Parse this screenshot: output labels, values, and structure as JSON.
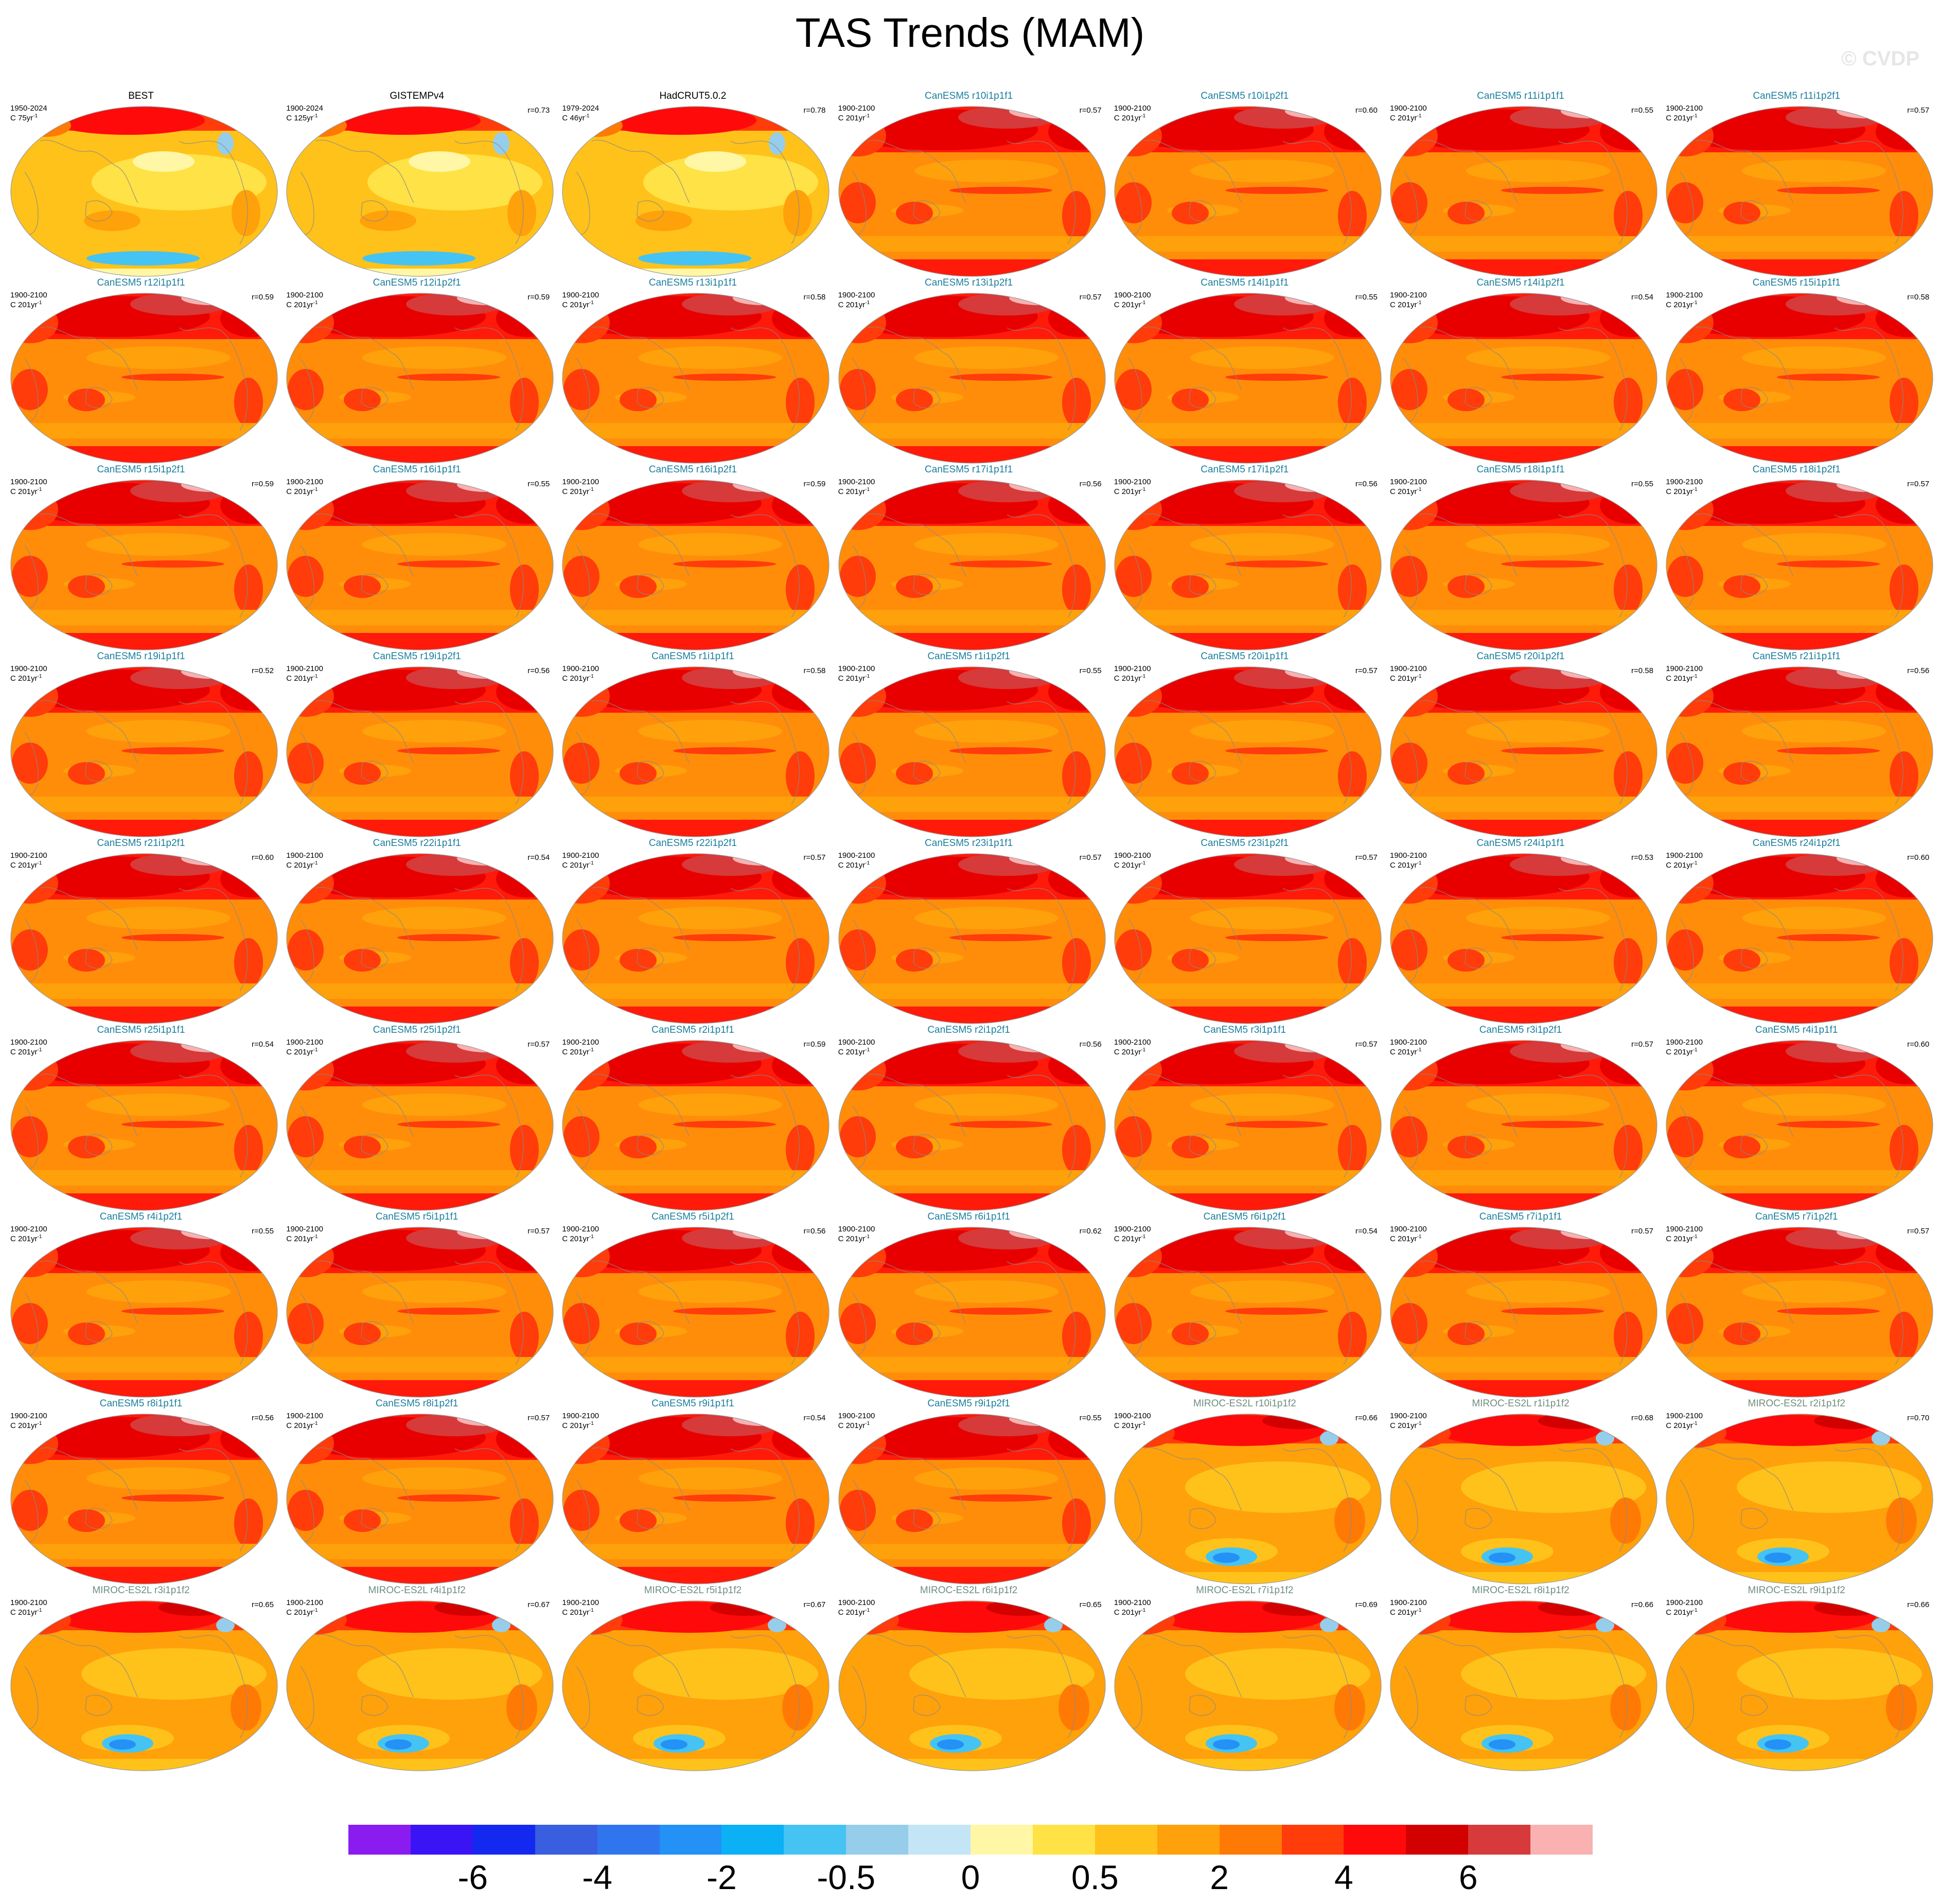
{
  "title": "TAS Trends (MAM)",
  "watermark": "© CVDP",
  "colors": {
    "obs_title": "#000000",
    "canesm_title": "#1a7f9e",
    "miroc_title": "#6f8f7f"
  },
  "colorbar": {
    "colors": [
      "#8a1cf0",
      "#3a14f5",
      "#1429f0",
      "#3a5ee0",
      "#2f76ee",
      "#2391f5",
      "#0bb0f5",
      "#45c3f3",
      "#96cdea",
      "#c3e5f5",
      "#fff7a6",
      "#ffe245",
      "#ffc21a",
      "#ffa10a",
      "#ff7a05",
      "#ff3c0a",
      "#ff0a0a",
      "#d30000",
      "#d63a3a",
      "#f9b1b1"
    ],
    "tick_labels": [
      "-6",
      "-4",
      "-2",
      "-0.5",
      "0",
      "0.5",
      "2",
      "4",
      "6"
    ]
  },
  "panels": [
    {
      "title": "BEST",
      "period": "1950-2024",
      "unit": "C 75yr",
      "corr": "",
      "style": "obs"
    },
    {
      "title": "GISTEMPv4",
      "period": "1900-2024",
      "unit": "C 125yr",
      "corr": "r=0.73",
      "style": "obs"
    },
    {
      "title": "HadCRUT5.0.2",
      "period": "1979-2024",
      "unit": "C 46yr",
      "corr": "r=0.78",
      "style": "obs"
    },
    {
      "title": "CanESM5 r10i1p1f1",
      "period": "1900-2100",
      "unit": "C 201yr",
      "corr": "r=0.57",
      "style": "canesm"
    },
    {
      "title": "CanESM5 r10i1p2f1",
      "period": "1900-2100",
      "unit": "C 201yr",
      "corr": "r=0.60",
      "style": "canesm"
    },
    {
      "title": "CanESM5 r11i1p1f1",
      "period": "1900-2100",
      "unit": "C 201yr",
      "corr": "r=0.55",
      "style": "canesm"
    },
    {
      "title": "CanESM5 r11i1p2f1",
      "period": "1900-2100",
      "unit": "C 201yr",
      "corr": "r=0.57",
      "style": "canesm"
    },
    {
      "title": "CanESM5 r12i1p1f1",
      "period": "1900-2100",
      "unit": "C 201yr",
      "corr": "r=0.59",
      "style": "canesm"
    },
    {
      "title": "CanESM5 r12i1p2f1",
      "period": "1900-2100",
      "unit": "C 201yr",
      "corr": "r=0.59",
      "style": "canesm"
    },
    {
      "title": "CanESM5 r13i1p1f1",
      "period": "1900-2100",
      "unit": "C 201yr",
      "corr": "r=0.58",
      "style": "canesm"
    },
    {
      "title": "CanESM5 r13i1p2f1",
      "period": "1900-2100",
      "unit": "C 201yr",
      "corr": "r=0.57",
      "style": "canesm"
    },
    {
      "title": "CanESM5 r14i1p1f1",
      "period": "1900-2100",
      "unit": "C 201yr",
      "corr": "r=0.55",
      "style": "canesm"
    },
    {
      "title": "CanESM5 r14i1p2f1",
      "period": "1900-2100",
      "unit": "C 201yr",
      "corr": "r=0.54",
      "style": "canesm"
    },
    {
      "title": "CanESM5 r15i1p1f1",
      "period": "1900-2100",
      "unit": "C 201yr",
      "corr": "r=0.58",
      "style": "canesm"
    },
    {
      "title": "CanESM5 r15i1p2f1",
      "period": "1900-2100",
      "unit": "C 201yr",
      "corr": "r=0.59",
      "style": "canesm"
    },
    {
      "title": "CanESM5 r16i1p1f1",
      "period": "1900-2100",
      "unit": "C 201yr",
      "corr": "r=0.55",
      "style": "canesm"
    },
    {
      "title": "CanESM5 r16i1p2f1",
      "period": "1900-2100",
      "unit": "C 201yr",
      "corr": "r=0.59",
      "style": "canesm"
    },
    {
      "title": "CanESM5 r17i1p1f1",
      "period": "1900-2100",
      "unit": "C 201yr",
      "corr": "r=0.56",
      "style": "canesm"
    },
    {
      "title": "CanESM5 r17i1p2f1",
      "period": "1900-2100",
      "unit": "C 201yr",
      "corr": "r=0.56",
      "style": "canesm"
    },
    {
      "title": "CanESM5 r18i1p1f1",
      "period": "1900-2100",
      "unit": "C 201yr",
      "corr": "r=0.55",
      "style": "canesm"
    },
    {
      "title": "CanESM5 r18i1p2f1",
      "period": "1900-2100",
      "unit": "C 201yr",
      "corr": "r=0.57",
      "style": "canesm"
    },
    {
      "title": "CanESM5 r19i1p1f1",
      "period": "1900-2100",
      "unit": "C 201yr",
      "corr": "r=0.52",
      "style": "canesm"
    },
    {
      "title": "CanESM5 r19i1p2f1",
      "period": "1900-2100",
      "unit": "C 201yr",
      "corr": "r=0.56",
      "style": "canesm"
    },
    {
      "title": "CanESM5 r1i1p1f1",
      "period": "1900-2100",
      "unit": "C 201yr",
      "corr": "r=0.58",
      "style": "canesm"
    },
    {
      "title": "CanESM5 r1i1p2f1",
      "period": "1900-2100",
      "unit": "C 201yr",
      "corr": "r=0.55",
      "style": "canesm"
    },
    {
      "title": "CanESM5 r20i1p1f1",
      "period": "1900-2100",
      "unit": "C 201yr",
      "corr": "r=0.57",
      "style": "canesm"
    },
    {
      "title": "CanESM5 r20i1p2f1",
      "period": "1900-2100",
      "unit": "C 201yr",
      "corr": "r=0.58",
      "style": "canesm"
    },
    {
      "title": "CanESM5 r21i1p1f1",
      "period": "1900-2100",
      "unit": "C 201yr",
      "corr": "r=0.56",
      "style": "canesm"
    },
    {
      "title": "CanESM5 r21i1p2f1",
      "period": "1900-2100",
      "unit": "C 201yr",
      "corr": "r=0.60",
      "style": "canesm"
    },
    {
      "title": "CanESM5 r22i1p1f1",
      "period": "1900-2100",
      "unit": "C 201yr",
      "corr": "r=0.54",
      "style": "canesm"
    },
    {
      "title": "CanESM5 r22i1p2f1",
      "period": "1900-2100",
      "unit": "C 201yr",
      "corr": "r=0.57",
      "style": "canesm"
    },
    {
      "title": "CanESM5 r23i1p1f1",
      "period": "1900-2100",
      "unit": "C 201yr",
      "corr": "r=0.57",
      "style": "canesm"
    },
    {
      "title": "CanESM5 r23i1p2f1",
      "period": "1900-2100",
      "unit": "C 201yr",
      "corr": "r=0.57",
      "style": "canesm"
    },
    {
      "title": "CanESM5 r24i1p1f1",
      "period": "1900-2100",
      "unit": "C 201yr",
      "corr": "r=0.53",
      "style": "canesm"
    },
    {
      "title": "CanESM5 r24i1p2f1",
      "period": "1900-2100",
      "unit": "C 201yr",
      "corr": "r=0.60",
      "style": "canesm"
    },
    {
      "title": "CanESM5 r25i1p1f1",
      "period": "1900-2100",
      "unit": "C 201yr",
      "corr": "r=0.54",
      "style": "canesm"
    },
    {
      "title": "CanESM5 r25i1p2f1",
      "period": "1900-2100",
      "unit": "C 201yr",
      "corr": "r=0.57",
      "style": "canesm"
    },
    {
      "title": "CanESM5 r2i1p1f1",
      "period": "1900-2100",
      "unit": "C 201yr",
      "corr": "r=0.59",
      "style": "canesm"
    },
    {
      "title": "CanESM5 r2i1p2f1",
      "period": "1900-2100",
      "unit": "C 201yr",
      "corr": "r=0.56",
      "style": "canesm"
    },
    {
      "title": "CanESM5 r3i1p1f1",
      "period": "1900-2100",
      "unit": "C 201yr",
      "corr": "r=0.57",
      "style": "canesm"
    },
    {
      "title": "CanESM5 r3i1p2f1",
      "period": "1900-2100",
      "unit": "C 201yr",
      "corr": "r=0.57",
      "style": "canesm"
    },
    {
      "title": "CanESM5 r4i1p1f1",
      "period": "1900-2100",
      "unit": "C 201yr",
      "corr": "r=0.60",
      "style": "canesm"
    },
    {
      "title": "CanESM5 r4i1p2f1",
      "period": "1900-2100",
      "unit": "C 201yr",
      "corr": "r=0.55",
      "style": "canesm"
    },
    {
      "title": "CanESM5 r5i1p1f1",
      "period": "1900-2100",
      "unit": "C 201yr",
      "corr": "r=0.57",
      "style": "canesm"
    },
    {
      "title": "CanESM5 r5i1p2f1",
      "period": "1900-2100",
      "unit": "C 201yr",
      "corr": "r=0.56",
      "style": "canesm"
    },
    {
      "title": "CanESM5 r6i1p1f1",
      "period": "1900-2100",
      "unit": "C 201yr",
      "corr": "r=0.62",
      "style": "canesm"
    },
    {
      "title": "CanESM5 r6i1p2f1",
      "period": "1900-2100",
      "unit": "C 201yr",
      "corr": "r=0.54",
      "style": "canesm"
    },
    {
      "title": "CanESM5 r7i1p1f1",
      "period": "1900-2100",
      "unit": "C 201yr",
      "corr": "r=0.57",
      "style": "canesm"
    },
    {
      "title": "CanESM5 r7i1p2f1",
      "period": "1900-2100",
      "unit": "C 201yr",
      "corr": "r=0.57",
      "style": "canesm"
    },
    {
      "title": "CanESM5 r8i1p1f1",
      "period": "1900-2100",
      "unit": "C 201yr",
      "corr": "r=0.56",
      "style": "canesm"
    },
    {
      "title": "CanESM5 r8i1p2f1",
      "period": "1900-2100",
      "unit": "C 201yr",
      "corr": "r=0.57",
      "style": "canesm"
    },
    {
      "title": "CanESM5 r9i1p1f1",
      "period": "1900-2100",
      "unit": "C 201yr",
      "corr": "r=0.54",
      "style": "canesm"
    },
    {
      "title": "CanESM5 r9i1p2f1",
      "period": "1900-2100",
      "unit": "C 201yr",
      "corr": "r=0.55",
      "style": "canesm"
    },
    {
      "title": "MIROC-ES2L r10i1p1f2",
      "period": "1900-2100",
      "unit": "C 201yr",
      "corr": "r=0.66",
      "style": "miroc"
    },
    {
      "title": "MIROC-ES2L r1i1p1f2",
      "period": "1900-2100",
      "unit": "C 201yr",
      "corr": "r=0.68",
      "style": "miroc"
    },
    {
      "title": "MIROC-ES2L r2i1p1f2",
      "period": "1900-2100",
      "unit": "C 201yr",
      "corr": "r=0.70",
      "style": "miroc"
    },
    {
      "title": "MIROC-ES2L r3i1p1f2",
      "period": "1900-2100",
      "unit": "C 201yr",
      "corr": "r=0.65",
      "style": "miroc"
    },
    {
      "title": "MIROC-ES2L r4i1p1f2",
      "period": "1900-2100",
      "unit": "C 201yr",
      "corr": "r=0.67",
      "style": "miroc"
    },
    {
      "title": "MIROC-ES2L r5i1p1f2",
      "period": "1900-2100",
      "unit": "C 201yr",
      "corr": "r=0.67",
      "style": "miroc"
    },
    {
      "title": "MIROC-ES2L r6i1p1f2",
      "period": "1900-2100",
      "unit": "C 201yr",
      "corr": "r=0.65",
      "style": "miroc"
    },
    {
      "title": "MIROC-ES2L r7i1p1f2",
      "period": "1900-2100",
      "unit": "C 201yr",
      "corr": "r=0.69",
      "style": "miroc"
    },
    {
      "title": "MIROC-ES2L r8i1p1f2",
      "period": "1900-2100",
      "unit": "C 201yr",
      "corr": "r=0.66",
      "style": "miroc"
    },
    {
      "title": "MIROC-ES2L r9i1p1f2",
      "period": "1900-2100",
      "unit": "C 201yr",
      "corr": "r=0.66",
      "style": "miroc"
    }
  ]
}
